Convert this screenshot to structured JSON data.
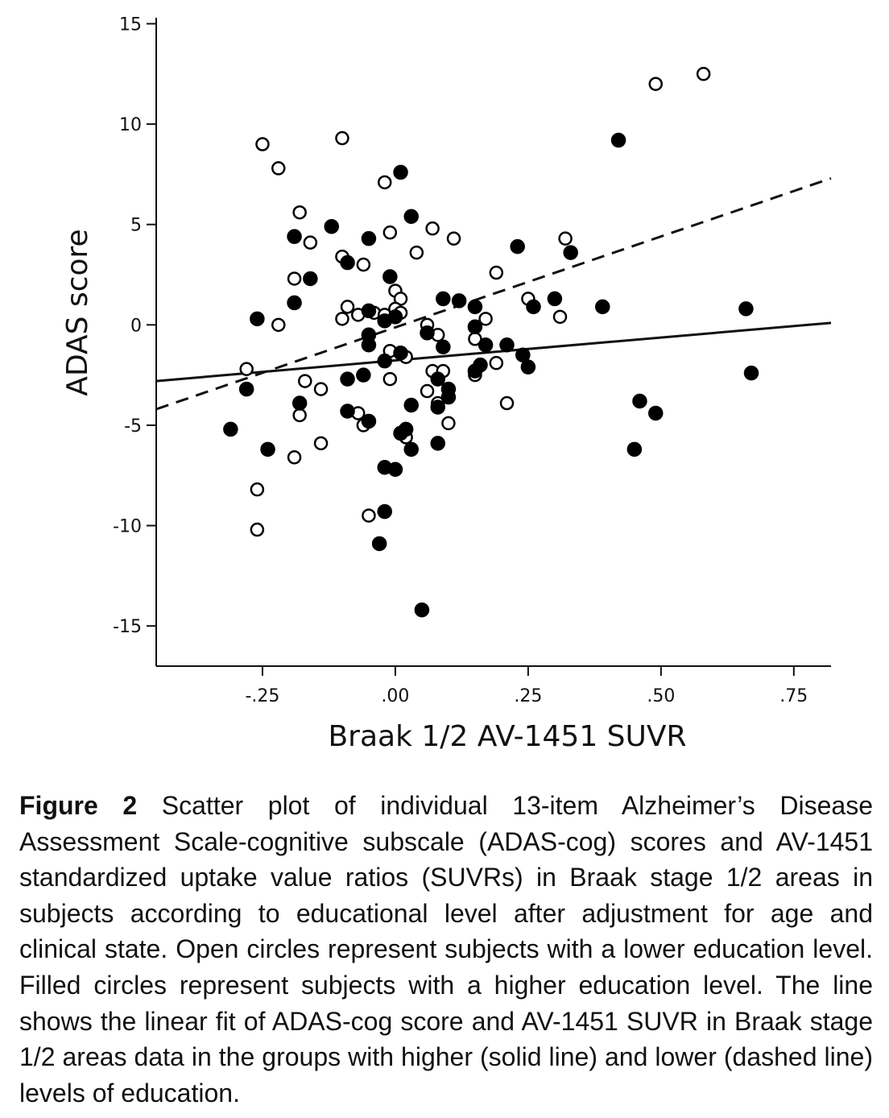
{
  "chart_data": {
    "type": "scatter",
    "xlabel": "Braak 1/2 AV-1451 SUVR",
    "ylabel": "ADAS score",
    "xlim": [
      -0.45,
      0.82
    ],
    "ylim": [
      -17,
      15.3
    ],
    "xticks": [
      -0.25,
      0,
      0.25,
      0.5,
      0.75
    ],
    "xtick_labels": [
      "-.25",
      ".00",
      ".25",
      ".50",
      ".75"
    ],
    "yticks": [
      -15,
      -10,
      -5,
      0,
      5,
      10,
      15
    ],
    "ytick_labels": [
      "-15",
      "-10",
      "-5",
      "0",
      "5",
      "10",
      "15"
    ],
    "grid": false,
    "series": [
      {
        "marker": "open-circle",
        "points": [
          [
            -0.25,
            9.0
          ],
          [
            -0.22,
            7.8
          ],
          [
            -0.18,
            5.6
          ],
          [
            -0.16,
            4.1
          ],
          [
            -0.19,
            2.3
          ],
          [
            -0.22,
            0.0
          ],
          [
            -0.28,
            -2.2
          ],
          [
            -0.17,
            -2.8
          ],
          [
            -0.14,
            -3.2
          ],
          [
            -0.18,
            -4.5
          ],
          [
            -0.14,
            -5.9
          ],
          [
            -0.19,
            -6.6
          ],
          [
            -0.26,
            -8.2
          ],
          [
            -0.26,
            -10.2
          ],
          [
            -0.1,
            9.3
          ],
          [
            -0.02,
            7.1
          ],
          [
            -0.01,
            4.6
          ],
          [
            0.04,
            3.6
          ],
          [
            0.07,
            4.8
          ],
          [
            0.11,
            4.3
          ],
          [
            -0.1,
            3.4
          ],
          [
            -0.06,
            3.0
          ],
          [
            -0.09,
            0.9
          ],
          [
            -0.1,
            0.3
          ],
          [
            -0.07,
            0.5
          ],
          [
            -0.04,
            0.6
          ],
          [
            -0.02,
            0.5
          ],
          [
            0.0,
            1.7
          ],
          [
            0.01,
            1.3
          ],
          [
            0.0,
            0.8
          ],
          [
            0.01,
            0.6
          ],
          [
            0.06,
            0.0
          ],
          [
            0.08,
            -0.5
          ],
          [
            -0.01,
            -1.3
          ],
          [
            0.01,
            -1.4
          ],
          [
            0.02,
            -1.6
          ],
          [
            0.07,
            -2.3
          ],
          [
            0.09,
            -2.3
          ],
          [
            0.06,
            -3.3
          ],
          [
            0.08,
            -3.9
          ],
          [
            0.1,
            -4.9
          ],
          [
            -0.01,
            -2.7
          ],
          [
            -0.07,
            -4.4
          ],
          [
            -0.06,
            -5.0
          ],
          [
            -0.05,
            -9.5
          ],
          [
            0.02,
            -5.6
          ],
          [
            0.19,
            2.6
          ],
          [
            0.17,
            0.3
          ],
          [
            0.15,
            -0.7
          ],
          [
            0.19,
            -1.9
          ],
          [
            0.15,
            -2.5
          ],
          [
            0.21,
            -3.9
          ],
          [
            0.25,
            1.3
          ],
          [
            0.32,
            4.3
          ],
          [
            0.31,
            0.4
          ],
          [
            0.49,
            12.0
          ],
          [
            0.58,
            12.5
          ]
        ]
      },
      {
        "marker": "filled-circle",
        "points": [
          [
            -0.31,
            -5.2
          ],
          [
            -0.28,
            -3.2
          ],
          [
            -0.26,
            0.3
          ],
          [
            -0.24,
            -6.2
          ],
          [
            -0.19,
            4.4
          ],
          [
            -0.19,
            1.1
          ],
          [
            -0.16,
            2.3
          ],
          [
            -0.18,
            -3.9
          ],
          [
            -0.12,
            4.9
          ],
          [
            -0.09,
            3.1
          ],
          [
            -0.05,
            4.3
          ],
          [
            -0.06,
            -2.5
          ],
          [
            -0.09,
            -2.7
          ],
          [
            -0.09,
            -4.3
          ],
          [
            -0.05,
            -4.8
          ],
          [
            -0.05,
            0.7
          ],
          [
            -0.05,
            -0.5
          ],
          [
            -0.05,
            -1.0
          ],
          [
            -0.02,
            0.2
          ],
          [
            -0.02,
            -1.8
          ],
          [
            -0.01,
            2.4
          ],
          [
            0.0,
            0.4
          ],
          [
            0.01,
            -1.4
          ],
          [
            0.01,
            7.6
          ],
          [
            0.03,
            5.4
          ],
          [
            0.06,
            -0.4
          ],
          [
            0.08,
            -2.7
          ],
          [
            0.09,
            -1.1
          ],
          [
            0.09,
            1.3
          ],
          [
            0.03,
            -4.0
          ],
          [
            0.08,
            -4.1
          ],
          [
            0.1,
            -3.6
          ],
          [
            0.1,
            -3.2
          ],
          [
            0.02,
            -5.2
          ],
          [
            0.01,
            -5.4
          ],
          [
            0.03,
            -6.2
          ],
          [
            0.08,
            -5.9
          ],
          [
            -0.02,
            -7.1
          ],
          [
            0.0,
            -7.2
          ],
          [
            -0.02,
            -9.3
          ],
          [
            -0.03,
            -10.9
          ],
          [
            0.05,
            -14.2
          ],
          [
            0.12,
            1.2
          ],
          [
            0.15,
            0.9
          ],
          [
            0.15,
            -0.1
          ],
          [
            0.16,
            -2.0
          ],
          [
            0.17,
            -1.0
          ],
          [
            0.15,
            -2.3
          ],
          [
            0.21,
            -1.0
          ],
          [
            0.23,
            3.9
          ],
          [
            0.24,
            -1.5
          ],
          [
            0.25,
            -2.1
          ],
          [
            0.26,
            0.9
          ],
          [
            0.3,
            1.3
          ],
          [
            0.33,
            3.6
          ],
          [
            0.39,
            0.9
          ],
          [
            0.42,
            9.2
          ],
          [
            0.45,
            -6.2
          ],
          [
            0.46,
            -3.8
          ],
          [
            0.49,
            -4.4
          ],
          [
            0.66,
            0.8
          ],
          [
            0.67,
            -2.4
          ]
        ]
      }
    ],
    "fits": [
      {
        "style": "solid",
        "x": [
          -0.45,
          0.82
        ],
        "y": [
          -2.8,
          0.1
        ]
      },
      {
        "style": "dashed",
        "x": [
          -0.45,
          0.82
        ],
        "y": [
          -4.2,
          7.3
        ]
      }
    ]
  },
  "caption": {
    "label": "Figure 2",
    "text": "Scatter plot of individual 13-item Alzheimer’s Disease Assessment Scale-cognitive subscale (ADAS-cog) scores and AV-1451 standardized uptake value ratios (SUVRs) in Braak stage 1/2 areas in subjects according to educational level after adjustment for age and clinical state. Open circles represent subjects with a lower education level. Filled circles represent subjects with a higher education level. The line shows the linear fit of ADAS-cog score and AV-1451 SUVR in Braak stage 1/2 areas data in the groups with higher (solid line) and lower (dashed line) levels of education."
  }
}
